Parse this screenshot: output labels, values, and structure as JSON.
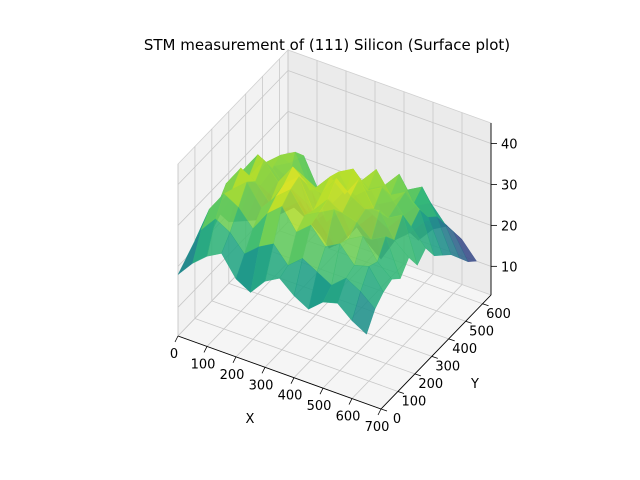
{
  "chart_data": {
    "type": "surface",
    "title": "STM measurement of (111) Silicon (Surface plot)",
    "xlabel": "X",
    "ylabel": "Y",
    "zlabel": "",
    "xlim": [
      0,
      700
    ],
    "ylim": [
      0,
      650
    ],
    "zlim": [
      3,
      45
    ],
    "x_ticks": [
      0,
      100,
      200,
      300,
      400,
      500,
      600,
      700
    ],
    "y_ticks": [
      0,
      100,
      200,
      300,
      400,
      500,
      600
    ],
    "z_ticks": [
      10,
      20,
      30,
      40
    ],
    "colormap": "viridis",
    "grid": true,
    "grid_x": [
      0,
      50,
      100,
      150,
      200,
      250,
      300,
      350,
      400,
      450,
      500,
      550,
      600,
      650
    ],
    "grid_y": [
      0,
      50,
      100,
      150,
      200,
      250,
      300,
      350,
      400,
      450,
      500,
      550,
      600,
      650
    ],
    "z_values": [
      [
        18,
        22,
        25,
        27,
        22,
        20,
        24,
        26,
        23,
        21,
        24,
        25,
        22,
        20
      ],
      [
        20,
        28,
        32,
        30,
        26,
        29,
        31,
        27,
        30,
        28,
        26,
        29,
        27,
        24
      ],
      [
        22,
        31,
        36,
        34,
        30,
        35,
        38,
        33,
        36,
        32,
        34,
        30,
        31,
        26
      ],
      [
        24,
        30,
        35,
        38,
        33,
        37,
        40,
        35,
        37,
        39,
        33,
        35,
        30,
        27
      ],
      [
        20,
        33,
        38,
        36,
        32,
        38,
        41,
        34,
        38,
        36,
        35,
        32,
        34,
        25
      ],
      [
        22,
        29,
        34,
        39,
        35,
        40,
        37,
        36,
        41,
        38,
        36,
        37,
        31,
        28
      ],
      [
        18,
        32,
        37,
        35,
        31,
        36,
        34,
        38,
        35,
        40,
        34,
        33,
        35,
        24
      ],
      [
        16,
        27,
        33,
        36,
        38,
        30,
        32,
        37,
        39,
        35,
        37,
        34,
        30,
        26
      ],
      [
        14,
        24,
        30,
        32,
        35,
        28,
        26,
        31,
        34,
        38,
        33,
        35,
        32,
        22
      ],
      [
        12,
        20,
        26,
        28,
        24,
        18,
        22,
        27,
        30,
        32,
        36,
        30,
        28,
        20
      ],
      [
        10,
        16,
        20,
        18,
        14,
        10,
        15,
        22,
        24,
        26,
        30,
        32,
        26,
        18
      ],
      [
        8,
        12,
        15,
        10,
        6,
        9,
        14,
        18,
        16,
        20,
        24,
        26,
        22,
        15
      ],
      [
        7,
        10,
        8,
        5,
        9,
        12,
        8,
        5,
        11,
        14,
        18,
        20,
        18,
        12
      ],
      [
        9,
        8,
        6,
        10,
        13,
        9,
        6,
        8,
        12,
        10,
        14,
        16,
        14,
        10
      ]
    ]
  }
}
